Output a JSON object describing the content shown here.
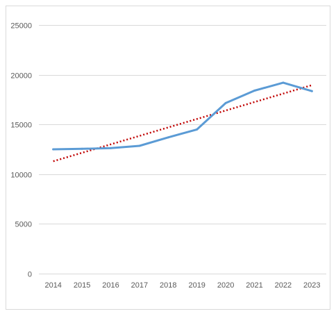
{
  "chart_data": {
    "type": "line",
    "title": "",
    "xlabel": "",
    "ylabel": "",
    "categories": [
      "2014",
      "2015",
      "2016",
      "2017",
      "2018",
      "2019",
      "2020",
      "2021",
      "2022",
      "2023"
    ],
    "series": [
      {
        "values": [
          12500,
          12550,
          12620,
          12850,
          13700,
          14500,
          17150,
          18400,
          19200,
          18350
        ],
        "color": "#5b9bd5"
      }
    ],
    "trendline": {
      "type": "linear",
      "start": 11300,
      "end": 18950,
      "color": "#c00000",
      "style": "dotted"
    },
    "ylim": [
      0,
      25000
    ],
    "yticks": [
      0,
      5000,
      10000,
      15000,
      20000,
      25000
    ],
    "grid": true,
    "legend": "none"
  }
}
